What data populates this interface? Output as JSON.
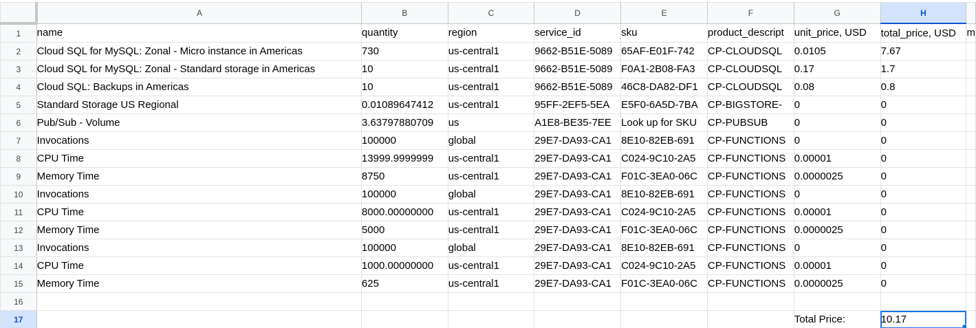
{
  "columns": [
    "A",
    "B",
    "C",
    "D",
    "E",
    "F",
    "G",
    "H",
    ""
  ],
  "selected_column": "H",
  "selected_row": "17",
  "rows": [
    {
      "num": "1",
      "cells": [
        "name",
        "quantity",
        "region",
        "service_id",
        "sku",
        "product_descript",
        "unit_price, USD",
        "total_price, USD",
        "m"
      ]
    },
    {
      "num": "2",
      "cells": [
        "Cloud SQL for MySQL: Zonal - Micro instance in Americas",
        "730",
        "us-central1",
        "9662-B51E-5089",
        "65AF-E01F-742",
        "CP-CLOUDSQL",
        "0.0105",
        "7.67",
        ""
      ]
    },
    {
      "num": "3",
      "cells": [
        "Cloud SQL for MySQL: Zonal - Standard storage in Americas",
        "10",
        "us-central1",
        "9662-B51E-5089",
        "F0A1-2B08-FA3",
        "CP-CLOUDSQL",
        "0.17",
        "1.7",
        ""
      ]
    },
    {
      "num": "4",
      "cells": [
        "Cloud SQL: Backups in Americas",
        "10",
        "us-central1",
        "9662-B51E-5089",
        "46C8-DA82-DF1",
        "CP-CLOUDSQL",
        "0.08",
        "0.8",
        ""
      ]
    },
    {
      "num": "5",
      "cells": [
        "Standard Storage US Regional",
        "0.01089647412",
        "us-central1",
        "95FF-2EF5-5EA",
        "E5F0-6A5D-7BA",
        "CP-BIGSTORE-",
        "0",
        "0",
        ""
      ]
    },
    {
      "num": "6",
      "cells": [
        "Pub/Sub - Volume",
        "3.63797880709",
        "us",
        "A1E8-BE35-7EE",
        "Look up for SKU",
        "CP-PUBSUB",
        "0",
        "0",
        ""
      ]
    },
    {
      "num": "7",
      "cells": [
        "Invocations",
        "100000",
        "global",
        "29E7-DA93-CA1",
        "8E10-82EB-691",
        "CP-FUNCTIONS",
        "0",
        "0",
        ""
      ]
    },
    {
      "num": "8",
      "cells": [
        "CPU Time",
        "13999.9999999",
        "us-central1",
        "29E7-DA93-CA1",
        "C024-9C10-2A5",
        "CP-FUNCTIONS",
        "0.00001",
        "0",
        ""
      ]
    },
    {
      "num": "9",
      "cells": [
        "Memory Time",
        "8750",
        "us-central1",
        "29E7-DA93-CA1",
        "F01C-3EA0-06C",
        "CP-FUNCTIONS",
        "0.0000025",
        "0",
        ""
      ]
    },
    {
      "num": "10",
      "cells": [
        "Invocations",
        "100000",
        "global",
        "29E7-DA93-CA1",
        "8E10-82EB-691",
        "CP-FUNCTIONS",
        "0",
        "0",
        ""
      ]
    },
    {
      "num": "11",
      "cells": [
        "CPU Time",
        "8000.00000000",
        "us-central1",
        "29E7-DA93-CA1",
        "C024-9C10-2A5",
        "CP-FUNCTIONS",
        "0.00001",
        "0",
        ""
      ]
    },
    {
      "num": "12",
      "cells": [
        "Memory Time",
        "5000",
        "us-central1",
        "29E7-DA93-CA1",
        "F01C-3EA0-06C",
        "CP-FUNCTIONS",
        "0.0000025",
        "0",
        ""
      ]
    },
    {
      "num": "13",
      "cells": [
        "Invocations",
        "100000",
        "global",
        "29E7-DA93-CA1",
        "8E10-82EB-691",
        "CP-FUNCTIONS",
        "0",
        "0",
        ""
      ]
    },
    {
      "num": "14",
      "cells": [
        "CPU Time",
        "1000.00000000",
        "us-central1",
        "29E7-DA93-CA1",
        "C024-9C10-2A5",
        "CP-FUNCTIONS",
        "0.00001",
        "0",
        ""
      ]
    },
    {
      "num": "15",
      "cells": [
        "Memory Time",
        "625",
        "us-central1",
        "29E7-DA93-CA1",
        "F01C-3EA0-06C",
        "CP-FUNCTIONS",
        "0.0000025",
        "0",
        ""
      ]
    },
    {
      "num": "16",
      "cells": [
        "",
        "",
        "",
        "",
        "",
        "",
        "",
        "",
        ""
      ]
    },
    {
      "num": "17",
      "cells": [
        "",
        "",
        "",
        "",
        "",
        "",
        "Total Price:",
        "10.17",
        ""
      ]
    }
  ]
}
